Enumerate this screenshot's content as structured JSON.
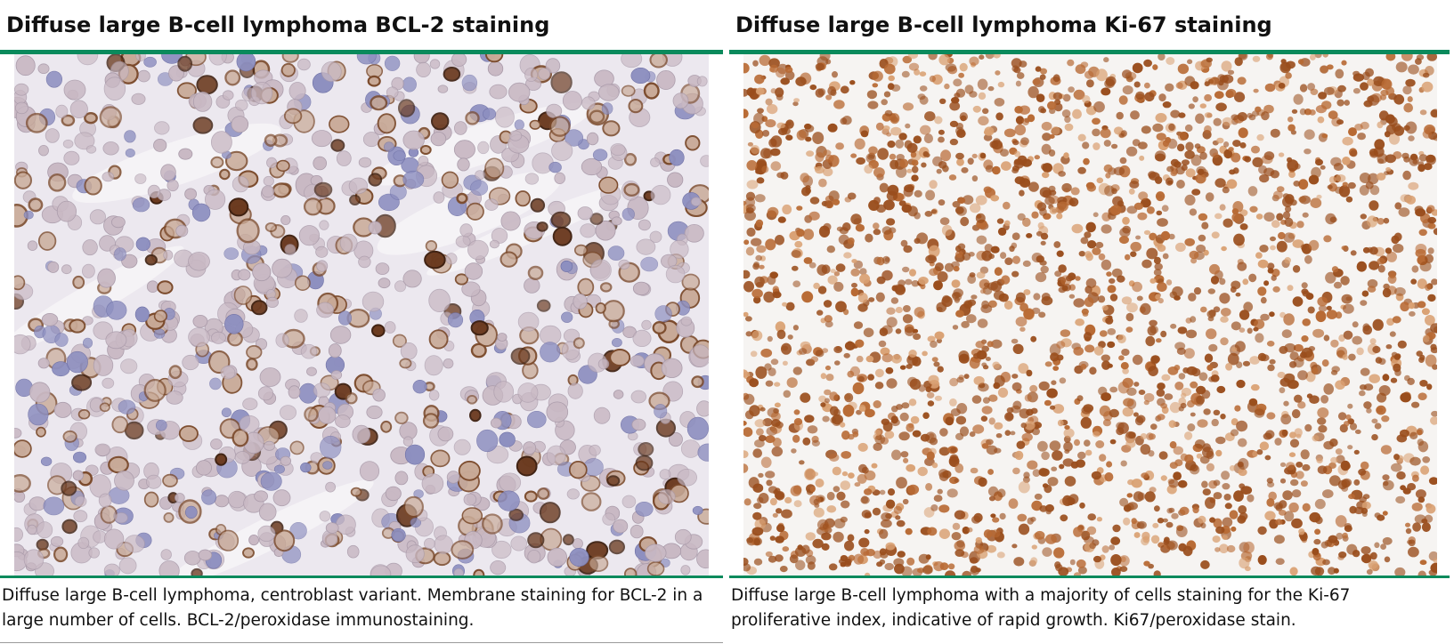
{
  "panels": [
    {
      "title": "Diffuse large B-cell lymphoma BCL-2 staining",
      "caption": "Diffuse large B-cell lymphoma, centroblast variant. Membrane staining for BCL-2 in a large number of cells. BCL-2/peroxidase immunostaining.",
      "stain": "BCL-2 membrane stain, brown on blue-grey hematoxylin"
    },
    {
      "title": "Diffuse large B-cell lymphoma Ki-67 staining",
      "caption": "Diffuse large B-cell lymphoma with a majority of cells staining for the Ki-67 proliferative index, indicative of rapid growth. Ki67/peroxidase stain.",
      "stain": "Ki-67 nuclear stain, brown nuclei on white"
    }
  ],
  "colors": {
    "rule": "#0a8a5c",
    "bcl2_background": "#ece8ef",
    "bcl2_cell": "#c9b9c4",
    "bcl2_stain": "#6b3a1f",
    "bcl2_hematoxylin": "#8d8fc0",
    "ki67_background": "#f6f4f2",
    "ki67_stain": "#9a4e1d",
    "ki67_light": "#d9a072"
  }
}
